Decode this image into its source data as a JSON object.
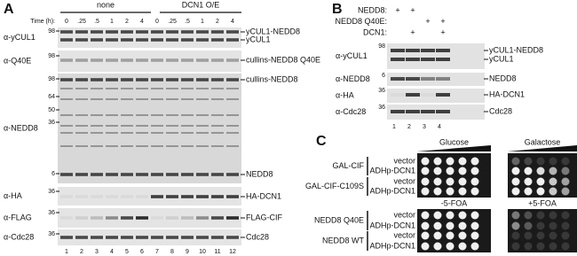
{
  "panel_a": {
    "letter": "A",
    "time_label": "Time (h):",
    "groups": [
      "none",
      "DCN1 O/E"
    ],
    "times": [
      "0",
      ".25",
      ".5",
      "1",
      "2",
      "4",
      "0",
      ".25",
      ".5",
      "1",
      "2",
      "4"
    ],
    "blots": [
      {
        "antibody": "α-yCUL1",
        "markers": [
          "98"
        ],
        "bands": [
          "yCUL1-NEDD8",
          "yCUL1"
        ]
      },
      {
        "antibody": "α-Q40E",
        "markers": [
          "98"
        ],
        "bands": [
          "cullins-NEDD8 Q40E"
        ]
      },
      {
        "antibody": "α-NEDD8",
        "markers": [
          "98",
          "64",
          "50",
          "36",
          "6"
        ],
        "bands": [
          "cullins-NEDD8",
          "NEDD8"
        ]
      },
      {
        "antibody": "α-HA",
        "markers": [
          "36"
        ],
        "bands": [
          "HA-DCN1"
        ]
      },
      {
        "antibody": "α-FLAG",
        "markers": [
          "36"
        ],
        "bands": [
          "FLAG-CIF"
        ]
      },
      {
        "antibody": "α-Cdc28",
        "markers": [
          "36"
        ],
        "bands": [
          "Cdc28"
        ]
      }
    ],
    "lanes": [
      "1",
      "2",
      "3",
      "4",
      "5",
      "6",
      "7",
      "8",
      "9",
      "10",
      "11",
      "12"
    ]
  },
  "panel_b": {
    "letter": "B",
    "conditions": [
      {
        "label": "NEDD8:",
        "marks": [
          "+",
          "+",
          null,
          null
        ]
      },
      {
        "label": "NEDD8 Q40E:",
        "marks": [
          null,
          null,
          "+",
          "+"
        ]
      },
      {
        "label": "DCN1:",
        "marks": [
          null,
          "+",
          null,
          "+"
        ]
      }
    ],
    "blots": [
      {
        "antibody": "α-yCUL1",
        "markers": [
          "98"
        ],
        "bands": [
          "yCUL1-NEDD8",
          "yCUL1"
        ]
      },
      {
        "antibody": "α-NEDD8",
        "markers": [
          "6"
        ],
        "bands": [
          "NEDD8"
        ]
      },
      {
        "antibody": "α-HA",
        "markers": [
          "36"
        ],
        "bands": [
          "HA-DCN1"
        ]
      },
      {
        "antibody": "α-Cdc28",
        "markers": [
          "36"
        ],
        "bands": [
          "Cdc28"
        ]
      }
    ],
    "lanes": [
      "1",
      "2",
      "3",
      "4"
    ]
  },
  "panel_c": {
    "letter": "C",
    "assays": [
      {
        "media": [
          "Glucose",
          "Galactose"
        ],
        "strains": [
          {
            "name": "GAL-CIF",
            "plasmids": [
              "vector",
              "ADHp-DCN1"
            ]
          },
          {
            "name": "GAL-CIF-C109S",
            "plasmids": [
              "vector",
              "ADHp-DCN1"
            ]
          }
        ]
      },
      {
        "media": [
          "-5-FOA",
          "+5-FOA"
        ],
        "strains": [
          {
            "name": "NEDD8 Q40E",
            "plasmids": [
              "vector",
              "ADHp-DCN1"
            ]
          },
          {
            "name": "NEDD8 WT",
            "plasmids": [
              "vector",
              "ADHp-DCN1"
            ]
          }
        ]
      }
    ]
  }
}
